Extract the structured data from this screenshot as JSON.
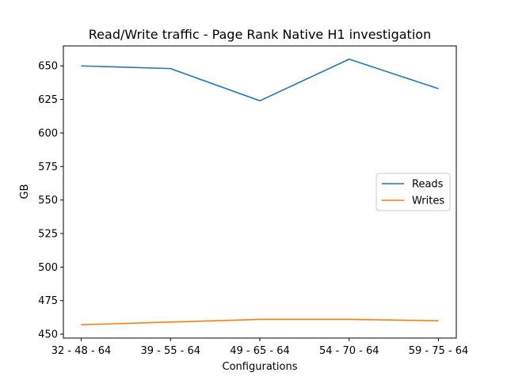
{
  "chart_data": {
    "type": "line",
    "title": "Read/Write traffic - Page Rank Native H1 investigation",
    "xlabel": "Configurations",
    "ylabel": "GB",
    "categories": [
      "32 - 48 - 64",
      "39 - 55 - 64",
      "49 - 65 - 64",
      "54 - 70 - 64",
      "59 - 75 - 64"
    ],
    "series": [
      {
        "name": "Reads",
        "color": "#1f77b4",
        "values": [
          650,
          648,
          624,
          655,
          633
        ]
      },
      {
        "name": "Writes",
        "color": "#ff7f0e",
        "values": [
          457,
          459,
          461,
          461,
          460
        ]
      }
    ],
    "ylim": [
      447.1,
      664.9
    ],
    "yticks": [
      450,
      475,
      500,
      525,
      550,
      575,
      600,
      625,
      650
    ],
    "grid": false,
    "legend": "center-right"
  }
}
